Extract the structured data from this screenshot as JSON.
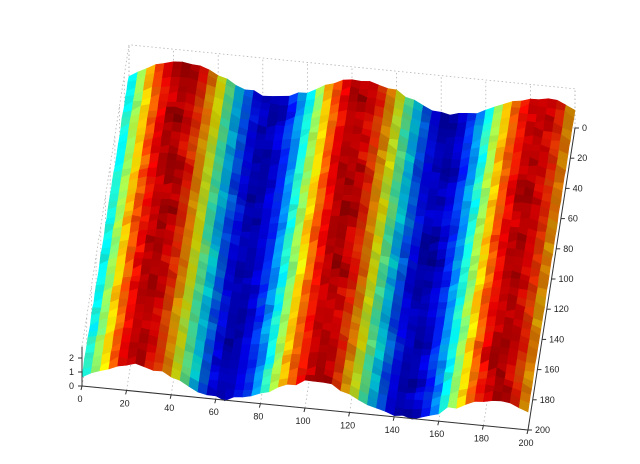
{
  "chart_data": {
    "type": "surface",
    "title": "",
    "xlabel": "",
    "ylabel": "",
    "zlabel": "",
    "colormap": "jet",
    "grid": true,
    "box": "open, dotted back panes",
    "x_axis": {
      "ticks": [
        0,
        20,
        40,
        60,
        80,
        100,
        120,
        140,
        160,
        180,
        200
      ],
      "tick_labels": [
        "0",
        "20",
        "40",
        "60",
        "80",
        "100",
        "120",
        "140",
        "160",
        "180",
        "200"
      ]
    },
    "y_axis": {
      "ticks": [
        0,
        20,
        40,
        60,
        80,
        100,
        120,
        140,
        160,
        180,
        200
      ],
      "tick_labels": [
        "0",
        "20",
        "40",
        "60",
        "80",
        "100",
        "120",
        "140",
        "160",
        "180",
        "200"
      ]
    },
    "z_axis": {
      "ticks": [
        0,
        1,
        2
      ],
      "tick_labels": [
        "0",
        "1",
        "2"
      ]
    },
    "surface": {
      "description_values": "noisy sinusoid along x, constant along y",
      "x_range": [
        0,
        200
      ],
      "y_range": [
        0,
        200
      ],
      "z_base": 1.0,
      "z_amplitude": 0.9,
      "z_noise_amplitude": 0.12,
      "minima_x": [
        65,
        140
      ],
      "maxima_x": [
        105,
        180,
        30
      ]
    }
  }
}
